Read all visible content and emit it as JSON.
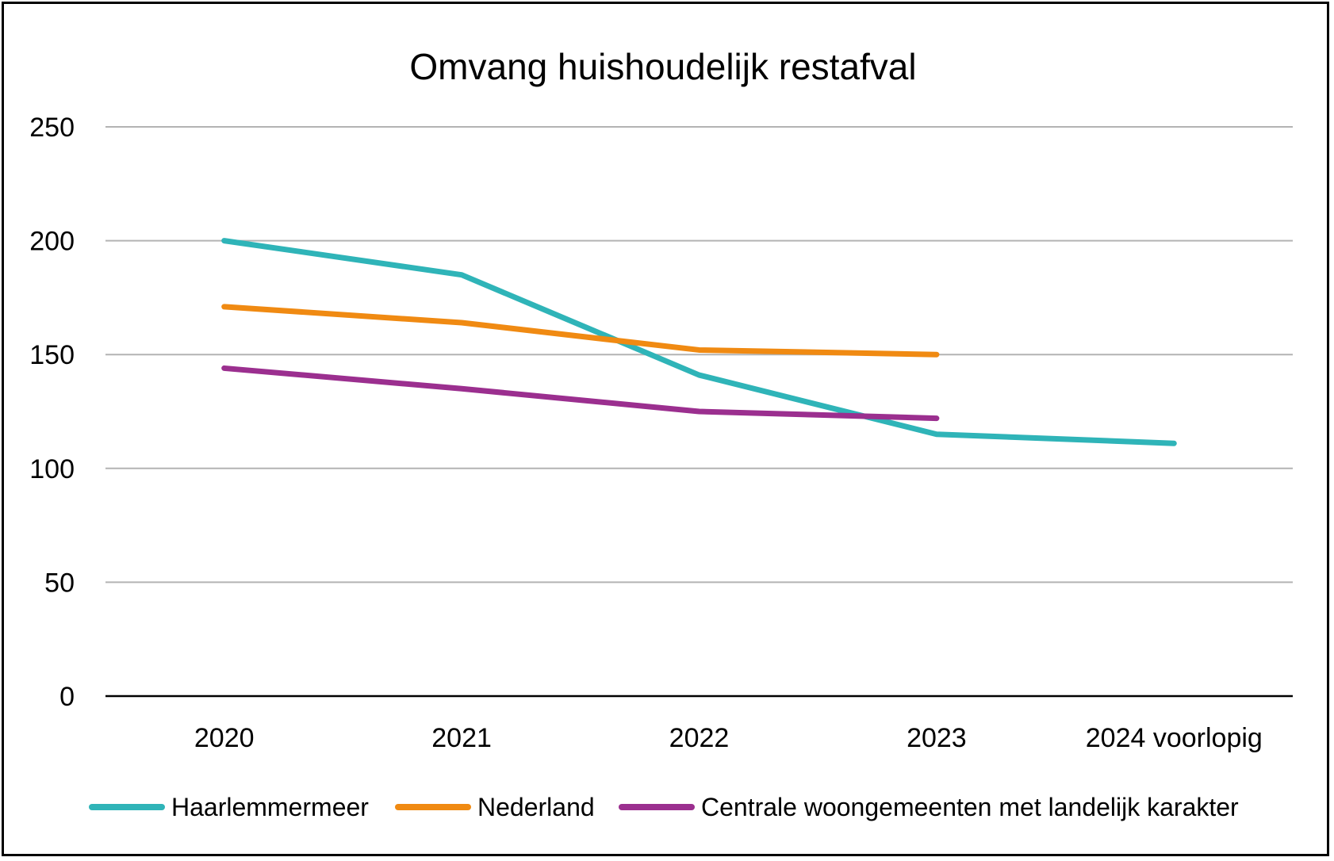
{
  "chart_data": {
    "type": "line",
    "title": "Omvang huishoudelijk restafval",
    "xlabel": "",
    "ylabel": "",
    "categories": [
      "2020",
      "2021",
      "2022",
      "2023",
      "2024 voorlopig"
    ],
    "ylim": [
      0,
      250
    ],
    "yticks": [
      "0",
      "50",
      "100",
      "150",
      "200",
      "250"
    ],
    "grid": true,
    "legend_position": "bottom",
    "series": [
      {
        "name": "Haarlemmermeer",
        "color": "#2fb4b8",
        "values": [
          200,
          185,
          141,
          115,
          111
        ]
      },
      {
        "name": "Nederland",
        "color": "#f08a12",
        "values": [
          171,
          164,
          152,
          150,
          null
        ]
      },
      {
        "name": "Centrale woongemeenten met landelijk karakter",
        "color": "#9b2f8f",
        "values": [
          144,
          135,
          125,
          122,
          null
        ]
      }
    ]
  }
}
